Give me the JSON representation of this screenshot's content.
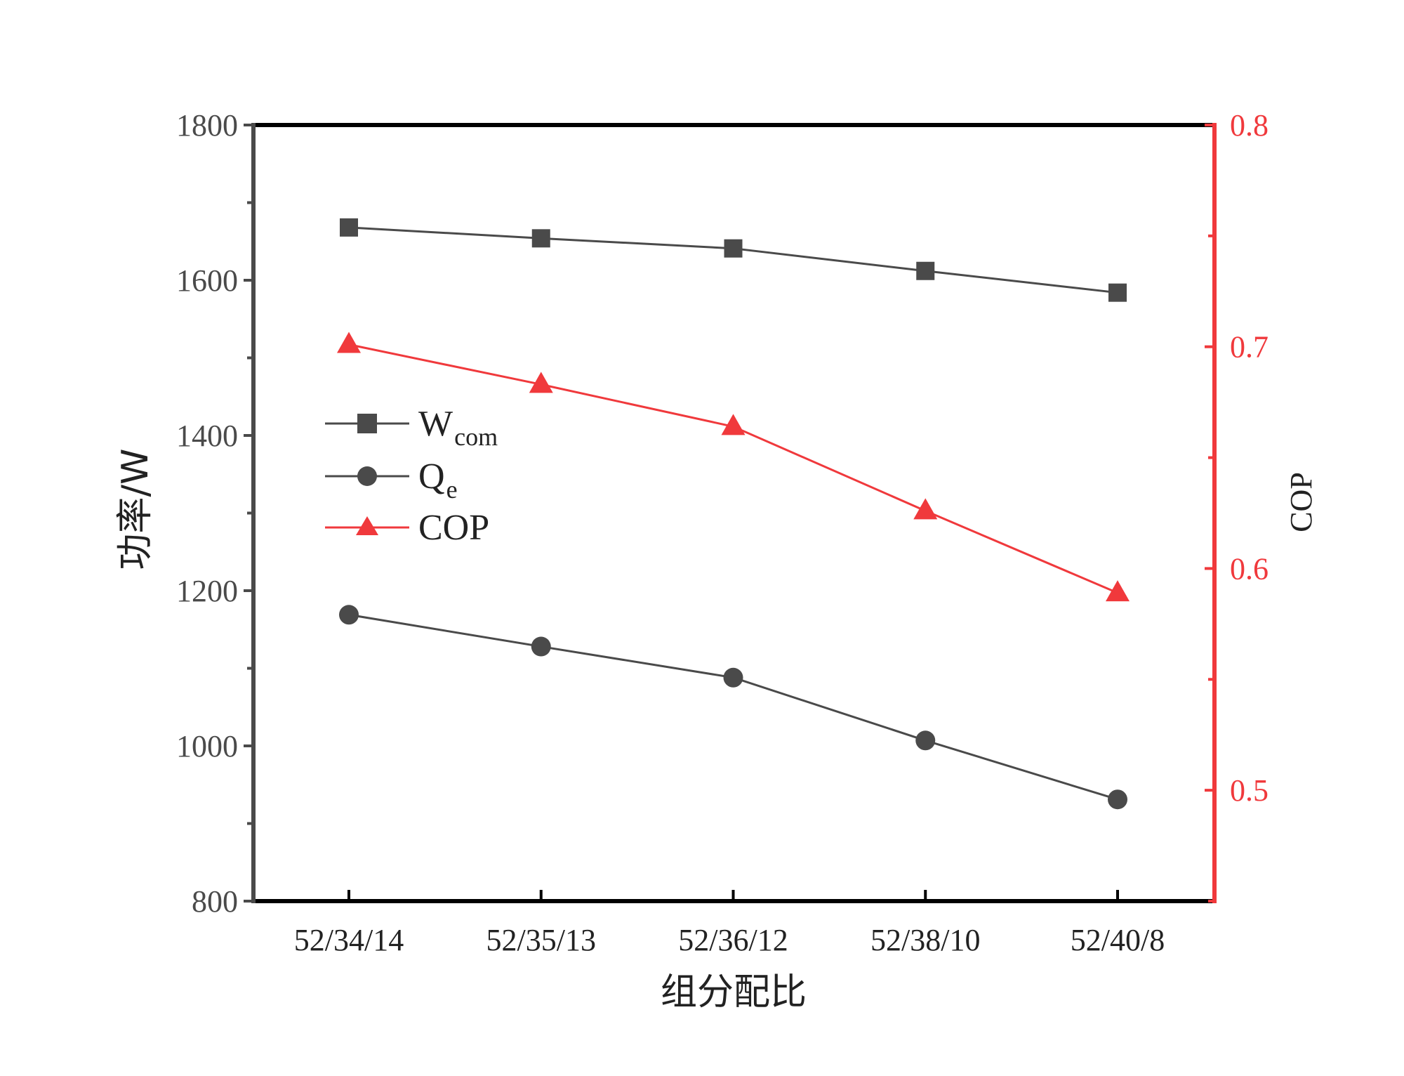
{
  "chart_data": {
    "type": "line",
    "categories": [
      "52/34/14",
      "52/35/13",
      "52/36/12",
      "52/38/10",
      "52/40/8"
    ],
    "xlabel": "组分配比",
    "ylabel": "功率/W",
    "y2label": "COP",
    "ylim": [
      800,
      1800
    ],
    "yticks": [
      800,
      1000,
      1200,
      1400,
      1600,
      1800
    ],
    "y2lim": [
      0.45,
      0.8
    ],
    "y2ticks": [
      0.5,
      0.6,
      0.7,
      0.8
    ],
    "y2tick_labels": [
      "0.5",
      "0.6",
      "0.7",
      "0.8"
    ],
    "legend_position": "middle-left",
    "series": [
      {
        "name": "W",
        "subscript": "com",
        "axis": "left",
        "marker": "square",
        "color": "#4a4a4a",
        "values": [
          1668,
          1654,
          1641,
          1612,
          1584
        ]
      },
      {
        "name": "Q",
        "subscript": "e",
        "axis": "left",
        "marker": "circle",
        "color": "#4a4a4a",
        "values": [
          1169,
          1128,
          1088,
          1007,
          931
        ]
      },
      {
        "name": "COP",
        "subscript": "",
        "axis": "right",
        "marker": "triangle",
        "color": "#f0393c",
        "values": [
          0.701,
          0.683,
          0.664,
          0.626,
          0.589
        ]
      }
    ],
    "colors": {
      "axis_left": "#4a4a4a",
      "axis_right": "#f0393c",
      "frame": "#000000"
    }
  }
}
